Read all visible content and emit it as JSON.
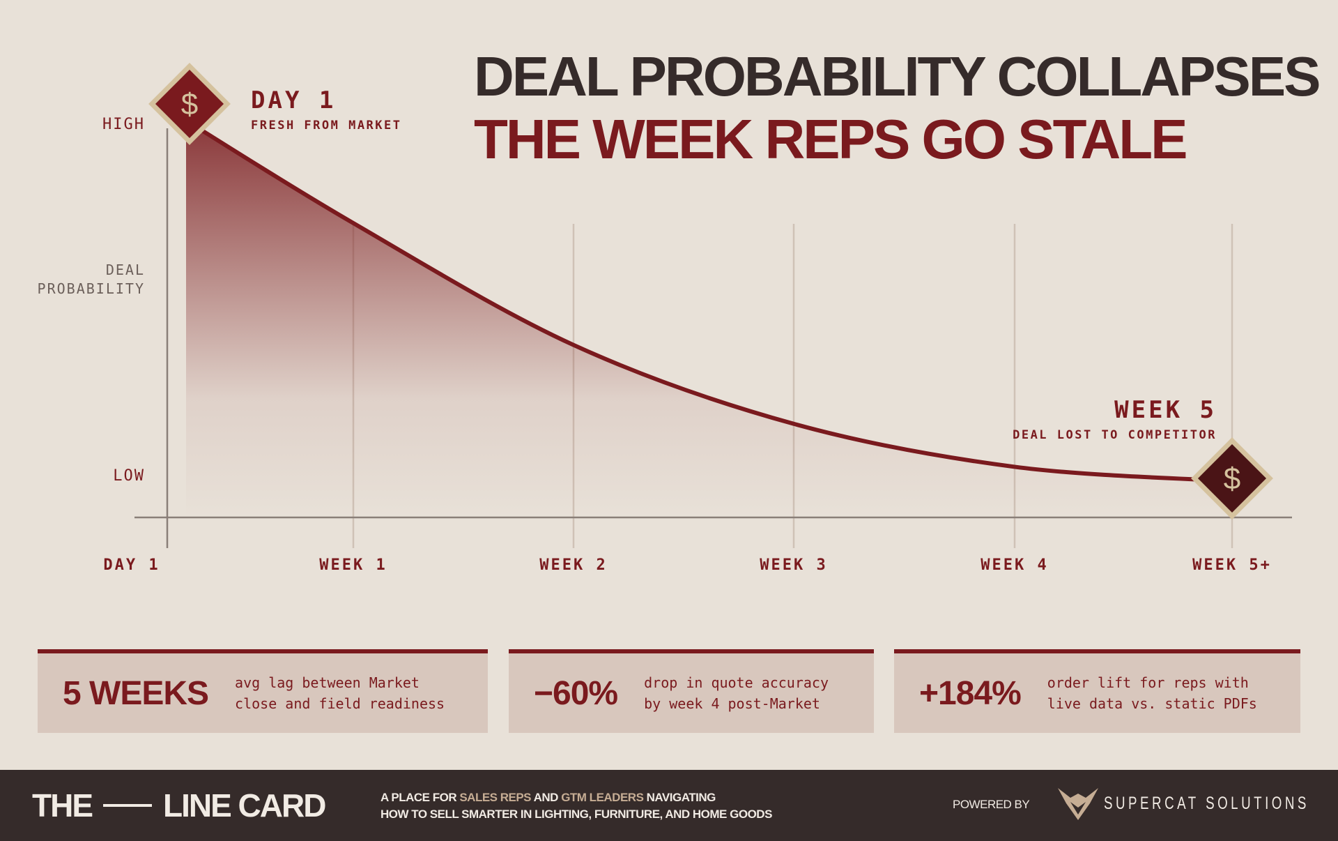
{
  "title": {
    "line1": "DEAL PROBABILITY COLLAPSES",
    "line2": "THE WEEK REPS GO STALE"
  },
  "colors": {
    "background": "#e8e1d8",
    "accent": "#7a1a1e",
    "dark": "#352b2a",
    "gold": "#c6ad94",
    "stat_box": "#d8c7bd"
  },
  "chart_data": {
    "type": "area",
    "x": [
      "DAY 1",
      "WEEK 1",
      "WEEK 2",
      "WEEK 3",
      "WEEK 4",
      "WEEK 5+"
    ],
    "values": [
      1.0,
      0.72,
      0.38,
      0.16,
      0.04,
      0.0
    ],
    "ylabel": "DEAL PROBABILITY",
    "y_ticks": {
      "high": "HIGH",
      "low": "LOW"
    },
    "ylim": [
      0,
      1
    ],
    "grid": "vertical",
    "annotations": [
      {
        "title": "DAY 1",
        "subtitle": "FRESH FROM MARKET",
        "at": "DAY 1",
        "icon": "dollar-diamond-icon"
      },
      {
        "title": "WEEK 5",
        "subtitle": "DEAL LOST TO COMPETITOR",
        "at": "WEEK 5+",
        "icon": "dollar-diamond-icon"
      }
    ]
  },
  "stats": [
    {
      "value": "5 WEEKS",
      "description": "avg lag between Market\nclose and field readiness"
    },
    {
      "value": "−60%",
      "description": "drop in quote accuracy\nby week 4 post-Market"
    },
    {
      "value": "+184%",
      "description": "order lift for reps with\nlive data vs. static PDFs"
    }
  ],
  "footer": {
    "brand_left": "THE",
    "brand_right": "LINE CARD",
    "tagline": {
      "p1": "A PLACE FOR ",
      "h1": "SALES REPS",
      "p2": " AND ",
      "h2": "GTM LEADERS",
      "p3": " NAVIGATING",
      "line2": "HOW TO SELL SMARTER IN LIGHTING, FURNITURE, AND HOME GOODS"
    },
    "powered_by": "POWERED BY",
    "partner": "SUPERCAT SOLUTIONS",
    "partner_icon": "supercat-logo-icon"
  }
}
